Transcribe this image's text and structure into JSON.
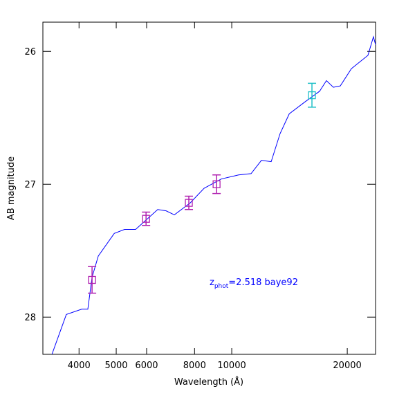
{
  "chart_data": {
    "type": "line",
    "x_label": "Wavelength (Å)",
    "y_label": "AB magnitude",
    "xscale": "log",
    "xlim": [
      3220,
      23700
    ],
    "ylim": [
      28.28,
      25.78
    ],
    "xticks": [
      4000,
      5000,
      6000,
      8000,
      10000,
      20000
    ],
    "yticks": [
      26,
      27,
      28
    ],
    "annotation": {
      "main": "z",
      "subscript": "phot",
      "text": "=2.518 baye92",
      "color": "#0000ff"
    },
    "series": [
      {
        "color": "#0000ff",
        "x": [
          3400,
          3706,
          4064,
          4217,
          4325,
          4490,
          4941,
          5256,
          5617,
          6413,
          6743,
          7086,
          7797,
          8472,
          9397,
          10420,
          11230,
          11950,
          12670,
          13360,
          14120,
          15520,
          16940,
          17650,
          18400,
          19180,
          20500,
          22640,
          23400,
          23700
        ],
        "values": [
          28.28,
          27.98,
          27.94,
          27.94,
          27.7,
          27.54,
          27.37,
          27.34,
          27.34,
          27.19,
          27.2,
          27.23,
          27.14,
          27.03,
          26.96,
          26.93,
          26.92,
          26.82,
          26.83,
          26.62,
          26.47,
          26.38,
          26.3,
          26.22,
          26.27,
          26.26,
          26.13,
          26.03,
          25.89,
          25.95
        ]
      }
    ],
    "points": [
      {
        "color": "#b020b0",
        "x": [
          4325,
          5980,
          7730,
          9130
        ],
        "values": [
          27.72,
          27.26,
          27.14,
          27.0
        ],
        "errors": [
          0.1,
          0.05,
          0.05,
          0.07
        ]
      },
      {
        "color": "#20c0c8",
        "x": [
          16180
        ],
        "values": [
          26.33
        ],
        "errors": [
          0.09
        ]
      }
    ]
  }
}
